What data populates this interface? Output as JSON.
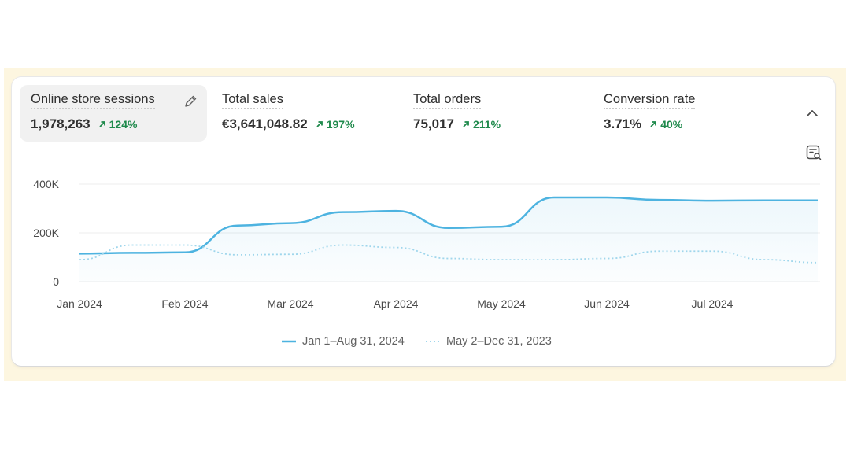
{
  "metrics": [
    {
      "label": "Online store sessions",
      "value": "1,978,263",
      "change": "124%",
      "active": true
    },
    {
      "label": "Total sales",
      "value": "€3,641,048.82",
      "change": "197%",
      "active": false
    },
    {
      "label": "Total orders",
      "value": "75,017",
      "change": "211%",
      "active": false
    },
    {
      "label": "Conversion rate",
      "value": "3.71%",
      "change": "40%",
      "active": false
    }
  ],
  "icons": {
    "edit": "pencil-icon",
    "collapse": "chevron-up-icon",
    "data": "data-table-icon",
    "trend": "arrow-up-right-icon"
  },
  "colors": {
    "current": "#4db3e0",
    "previous": "#9fd6ec",
    "positive": "#1f8a4c",
    "frame": "#fdf6e0"
  },
  "chart_data": {
    "type": "line",
    "x": [
      0,
      0.5,
      1,
      1.5,
      2,
      2.5,
      3,
      3.5,
      4,
      4.5,
      5,
      5.5,
      6,
      6.5,
      7
    ],
    "x_tick_labels": [
      "Jan 2024",
      "Feb 2024",
      "Mar 2024",
      "Apr 2024",
      "May 2024",
      "Jun 2024",
      "Jul 2024"
    ],
    "y_tick_labels": [
      "400K",
      "200K",
      "0"
    ],
    "ylim": [
      0,
      400000
    ],
    "grid": true,
    "legend_position": "bottom-center",
    "series": [
      {
        "name": "Jan 1–Aug 31, 2024",
        "style": "solid",
        "values": [
          115000,
          118000,
          120000,
          230000,
          240000,
          285000,
          290000,
          220000,
          225000,
          345000,
          345000,
          335000,
          332000,
          333000,
          333000
        ]
      },
      {
        "name": "May 2–Dec 31, 2023",
        "style": "dotted",
        "values": [
          90000,
          150000,
          150000,
          110000,
          112000,
          150000,
          140000,
          95000,
          90000,
          90000,
          95000,
          125000,
          125000,
          90000,
          78000
        ]
      }
    ]
  }
}
